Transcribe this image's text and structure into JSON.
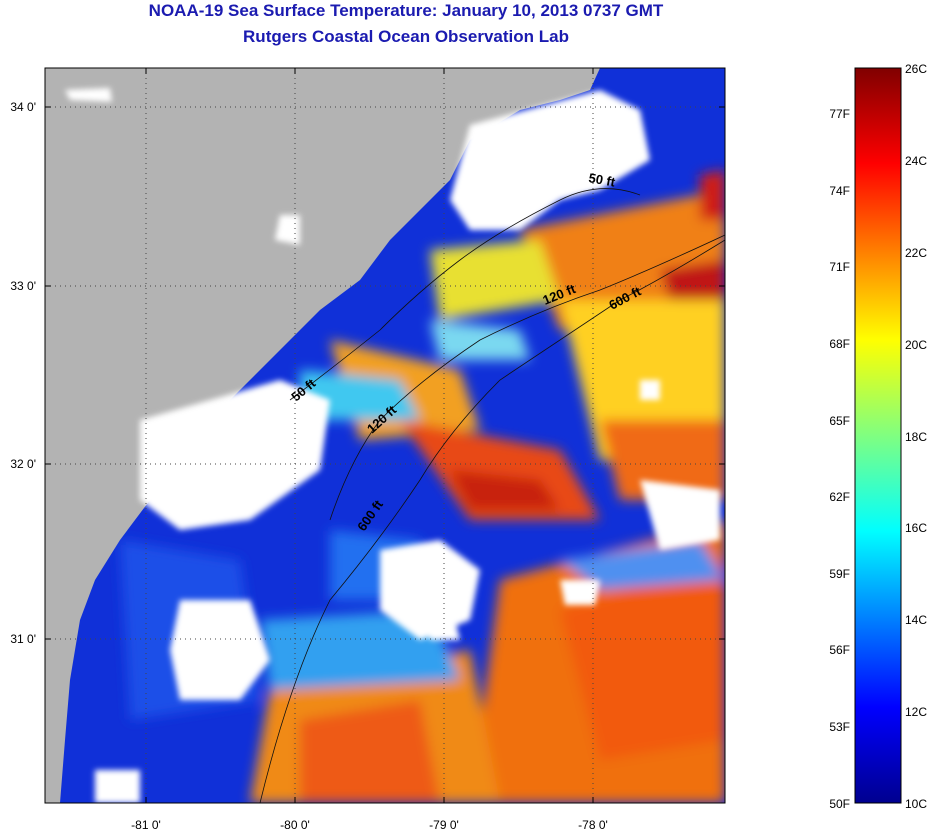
{
  "title": {
    "line1": "NOAA-19 Sea Surface Temperature:  January 10, 2013 0737 GMT",
    "line2": "Rutgers Coastal Ocean Observation Lab"
  },
  "map": {
    "lat_ticks": [
      "34 0'",
      "33 0'",
      "32 0'",
      "31 0'"
    ],
    "lon_ticks": [
      "-81 0'",
      "-80 0'",
      "-79 0'",
      "-78 0'"
    ],
    "isobaths": [
      "50 ft",
      "120 ft",
      "600 ft",
      "50 ft",
      "120 ft",
      "600 ft"
    ],
    "colors": {
      "land": "#b3b3b3",
      "cloud": "#ffffff",
      "cold": "#0d1fb5",
      "warm": "#f46a12"
    }
  },
  "colorbar": {
    "celsius": [
      "26C",
      "24C",
      "22C",
      "20C",
      "18C",
      "16C",
      "14C",
      "12C",
      "10C"
    ],
    "fahrenheit": [
      "77F",
      "74F",
      "71F",
      "68F",
      "65F",
      "62F",
      "59F",
      "56F",
      "53F",
      "50F"
    ]
  }
}
